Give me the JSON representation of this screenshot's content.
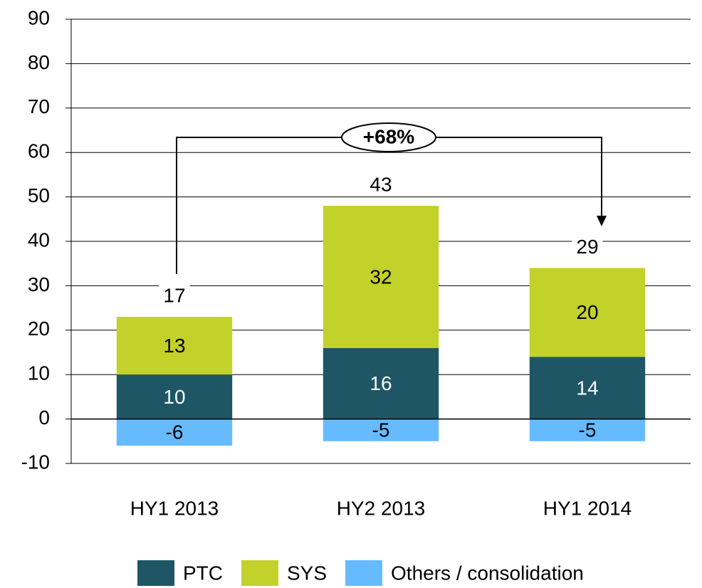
{
  "chart_data": {
    "type": "bar",
    "stacked": true,
    "categories": [
      "HY1 2013",
      "HY2 2013",
      "HY1 2014"
    ],
    "series": [
      {
        "name": "PTC",
        "color": "#1f5665",
        "values": [
          10,
          16,
          14
        ]
      },
      {
        "name": "SYS",
        "color": "#c3d12b",
        "values": [
          13,
          32,
          20
        ]
      },
      {
        "name": "Others / consolidation",
        "color": "#66bbff",
        "values": [
          -6,
          -5,
          -5
        ]
      }
    ],
    "totals": [
      17,
      43,
      29
    ],
    "annotation": "+68%",
    "ylim": [
      -10,
      90
    ],
    "yticks": [
      -10,
      0,
      10,
      20,
      30,
      40,
      50,
      60,
      70,
      80,
      90
    ],
    "grid": true,
    "legend": "bottom"
  }
}
